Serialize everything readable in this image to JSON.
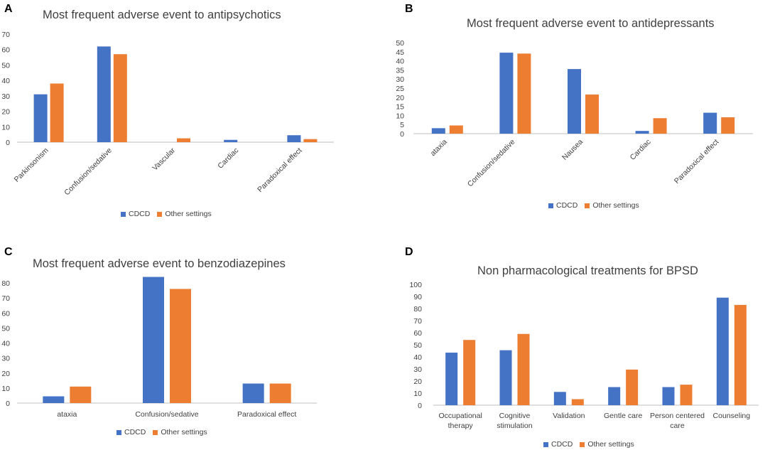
{
  "colors": {
    "cdcd": "#4472c4",
    "other": "#ed7d31",
    "axis": "#bfbfbf",
    "text": "#404040"
  },
  "legend": {
    "cdcd": "CDCD",
    "other": "Other settings"
  },
  "panels": [
    {
      "letter": "A",
      "title": "Most frequent adverse event to antipsychotics"
    },
    {
      "letter": "B",
      "title": "Most frequent adverse event to antidepressants"
    },
    {
      "letter": "C",
      "title": "Most frequent adverse event to benzodiazepines"
    },
    {
      "letter": "D",
      "title": "Non pharmacological treatments for BPSD"
    }
  ],
  "chart_data": [
    {
      "type": "bar",
      "title": "Most frequent adverse event to antipsychotics",
      "categories": [
        "Parkinsonism",
        "Confusion/sedative",
        "Vascular",
        "Cardiac",
        "Paradoxical effect"
      ],
      "series": [
        {
          "name": "CDCD",
          "values": [
            31,
            62,
            0,
            1.5,
            4.5
          ]
        },
        {
          "name": "Other settings",
          "values": [
            38,
            57,
            2.5,
            0,
            2
          ]
        }
      ],
      "ylim": [
        0,
        70
      ],
      "ystep": 10,
      "xlabel": "",
      "ylabel": "",
      "legend": "bottom"
    },
    {
      "type": "bar",
      "title": "Most frequent adverse event to antidepressants",
      "categories": [
        "ataxia",
        "Confusion/sedative",
        "Nausea",
        "Cardiac",
        "Paradoxical effect"
      ],
      "series": [
        {
          "name": "CDCD",
          "values": [
            3,
            44.5,
            35.5,
            1.5,
            11.5
          ]
        },
        {
          "name": "Other settings",
          "values": [
            4.5,
            44,
            21.5,
            8.5,
            9
          ]
        }
      ],
      "ylim": [
        0,
        50
      ],
      "ystep": 5,
      "xlabel": "",
      "ylabel": "",
      "legend": "bottom"
    },
    {
      "type": "bar",
      "title": "Most frequent adverse event to benzodiazepines",
      "categories": [
        "ataxia",
        "Confusion/sedative",
        "Paradoxical effect"
      ],
      "series": [
        {
          "name": "CDCD",
          "values": [
            4.5,
            84,
            13
          ]
        },
        {
          "name": "Other settings",
          "values": [
            11,
            76,
            13
          ]
        }
      ],
      "ylim": [
        0,
        80
      ],
      "ystep": 10,
      "xlabel": "",
      "ylabel": "",
      "legend": "bottom"
    },
    {
      "type": "bar",
      "title": "Non pharmacological treatments for BPSD",
      "categories": [
        "Occupational therapy",
        "Cognitive stimulation",
        "Validation",
        "Gentle care",
        "Person centered care",
        "Counseling"
      ],
      "series": [
        {
          "name": "CDCD",
          "values": [
            43.5,
            45.5,
            11,
            15,
            15,
            89
          ]
        },
        {
          "name": "Other settings",
          "values": [
            54,
            59,
            5,
            29.5,
            17,
            83
          ]
        }
      ],
      "ylim": [
        0,
        100
      ],
      "ystep": 10,
      "xlabel": "",
      "ylabel": "",
      "legend": "bottom"
    }
  ]
}
